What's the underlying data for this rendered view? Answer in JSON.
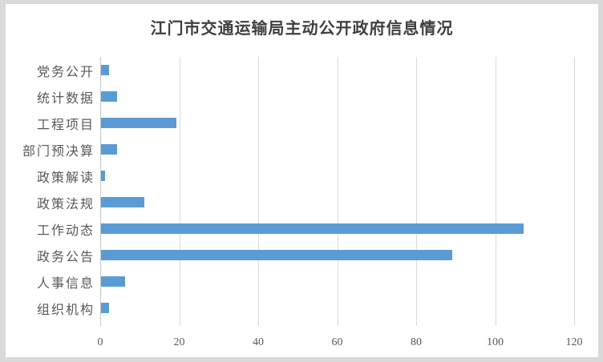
{
  "frame": {
    "border_color": "#d9d9d9",
    "background": "#ffffff"
  },
  "chart_data": {
    "type": "bar",
    "orientation": "horizontal",
    "title": "江门市交通运输局主动公开政府信息情况",
    "categories": [
      "党务公开",
      "统计数据",
      "工程项目",
      "部门预决算",
      "政策解读",
      "政策法规",
      "工作动态",
      "政务公告",
      "人事信息",
      "组织机构"
    ],
    "values": [
      2,
      4,
      19,
      4,
      1,
      11,
      107,
      89,
      6,
      2
    ],
    "x_ticks": [
      0,
      20,
      40,
      60,
      80,
      100,
      120
    ],
    "xlim": [
      0,
      120
    ],
    "xlabel": "",
    "ylabel": "",
    "grid": true,
    "legend": false,
    "bar_color": "#5b9bd5",
    "gridline_color": "#d9d9d9",
    "axis_line_color": "#c6c6c6",
    "tick_label_color": "#595959",
    "category_label_color": "#595959",
    "title_color": "#3f3f3f"
  }
}
